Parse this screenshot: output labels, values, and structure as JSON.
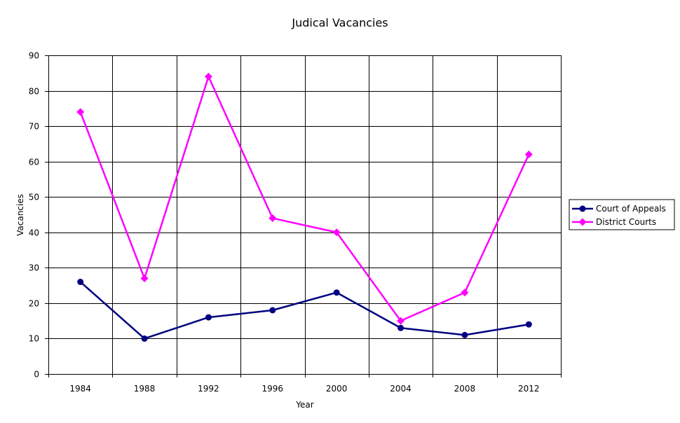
{
  "chart_data": {
    "type": "line",
    "title": "Judical Vacancies",
    "xlabel": "Year",
    "ylabel": "Vacancies",
    "categories": [
      "1984",
      "1988",
      "1992",
      "1996",
      "2000",
      "2004",
      "2008",
      "2012"
    ],
    "ylim": [
      0,
      90
    ],
    "yticks": [
      "0",
      "10",
      "20",
      "30",
      "40",
      "50",
      "60",
      "70",
      "80",
      "90"
    ],
    "grid": true,
    "legend_position": "right",
    "series": [
      {
        "name": "Court of Appeals",
        "values": [
          26,
          10,
          16,
          18,
          23,
          13,
          11,
          14
        ],
        "color": "#000080",
        "marker": "circle"
      },
      {
        "name": "District Courts",
        "values": [
          74,
          27,
          84,
          44,
          40,
          15,
          23,
          62
        ],
        "color": "#ff00ff",
        "marker": "diamond"
      }
    ]
  }
}
